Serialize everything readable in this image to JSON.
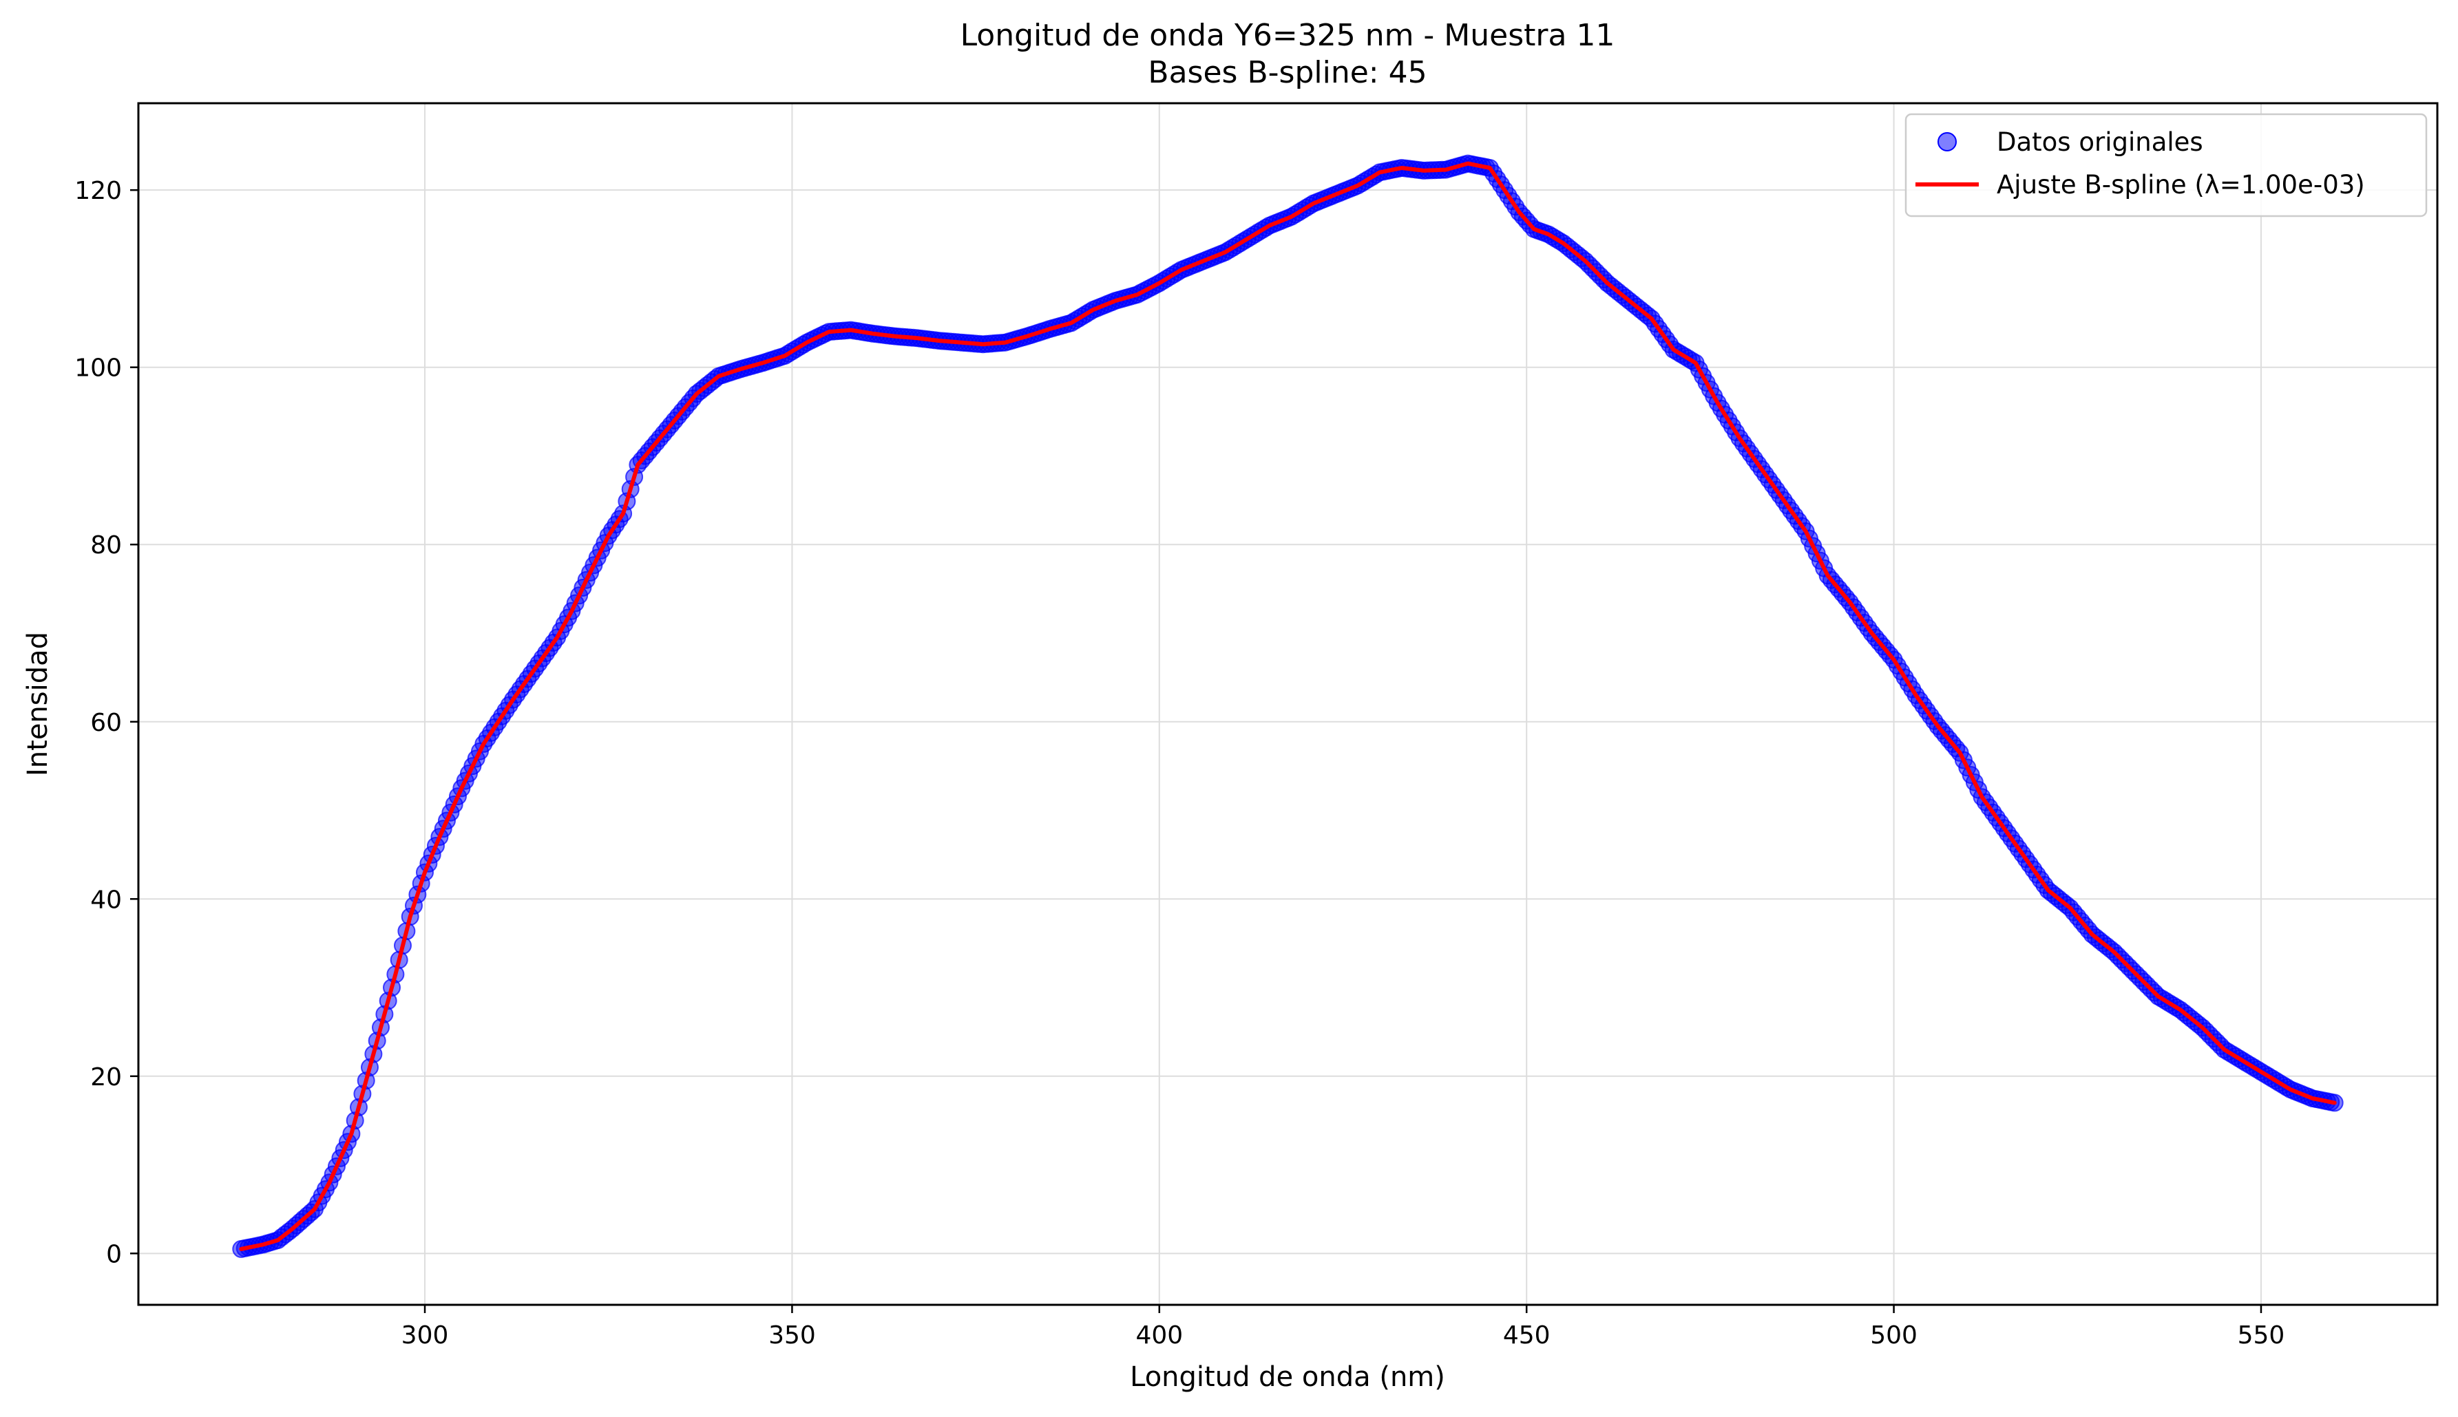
{
  "chart_data": {
    "type": "scatter",
    "title": "Longitud de onda Y6=325 nm - Muestra 11",
    "subtitle": "Bases B-spline: 45",
    "xlabel": "Longitud de onda (nm)",
    "ylabel": "Intensidad",
    "xlim": [
      261,
      574
    ],
    "ylim": [
      -5.8,
      129.8
    ],
    "x_ticks": [
      300,
      350,
      400,
      450,
      500,
      550
    ],
    "y_ticks": [
      0,
      20,
      40,
      60,
      80,
      100,
      120
    ],
    "grid": true,
    "legend_position": "top-right",
    "colors": {
      "points": "#0000ff",
      "fit": "#ff0000",
      "grid": "#dddddd"
    },
    "series": [
      {
        "name": "Datos originales",
        "kind": "scatter",
        "style": "points"
      },
      {
        "name": "Ajuste B-spline (λ=1.00e-03)",
        "kind": "line",
        "style": "fit"
      }
    ],
    "x": [
      275,
      278,
      280,
      282,
      285,
      287,
      290,
      292,
      294,
      296,
      298,
      300,
      302,
      305,
      308,
      310,
      312,
      315,
      318,
      320,
      322,
      325,
      327,
      329,
      331,
      334,
      337,
      340,
      343,
      346,
      349,
      352,
      355,
      358,
      361,
      364,
      367,
      370,
      373,
      376,
      379,
      382,
      385,
      388,
      391,
      394,
      397,
      400,
      403,
      406,
      409,
      412,
      415,
      418,
      421,
      424,
      427,
      430,
      433,
      436,
      439,
      442,
      445,
      447,
      449,
      451,
      453,
      455,
      458,
      461,
      464,
      467,
      470,
      473,
      476,
      479,
      482,
      485,
      488,
      491,
      494,
      497,
      500,
      503,
      506,
      509,
      512,
      515,
      518,
      521,
      524,
      527,
      530,
      533,
      536,
      539,
      542,
      545,
      548,
      551,
      554,
      557,
      560
    ],
    "y": [
      0.5,
      1.0,
      1.5,
      2.8,
      5.0,
      8.0,
      13.5,
      19.5,
      25.5,
      31.5,
      38.0,
      43.0,
      47.0,
      52.5,
      57.5,
      60.0,
      62.5,
      66.0,
      69.5,
      72.5,
      76.0,
      81.0,
      83.5,
      89.0,
      91.0,
      94.0,
      97.0,
      99.0,
      99.8,
      100.5,
      101.3,
      102.8,
      104.0,
      104.2,
      103.8,
      103.5,
      103.3,
      103.0,
      102.8,
      102.6,
      102.8,
      103.5,
      104.3,
      105.0,
      106.5,
      107.5,
      108.2,
      109.5,
      111.0,
      112.0,
      113.0,
      114.5,
      116.0,
      117.0,
      118.5,
      119.5,
      120.5,
      122.0,
      122.5,
      122.2,
      122.3,
      123.0,
      122.5,
      120.0,
      117.5,
      115.6,
      115.0,
      114.0,
      112.0,
      109.5,
      107.5,
      105.5,
      102.0,
      100.5,
      96.0,
      92.0,
      88.5,
      85.0,
      81.5,
      76.5,
      73.5,
      70.0,
      67.0,
      63.0,
      59.5,
      56.5,
      51.5,
      48.0,
      44.5,
      41.0,
      39.0,
      36.0,
      34.0,
      31.5,
      29.0,
      27.5,
      25.5,
      23.0,
      21.5,
      20.0,
      18.5,
      17.5,
      17.0
    ]
  }
}
